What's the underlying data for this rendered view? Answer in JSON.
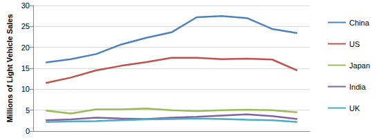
{
  "chart_data": {
    "type": "line",
    "y_label": "Millions of Light Vehicle Sales",
    "categories": [
      null,
      null,
      null,
      null,
      null,
      null,
      null,
      null,
      null,
      null,
      null
    ],
    "series": [
      {
        "name": "China",
        "color": "#4f81bd",
        "values": [
          16.4,
          17.2,
          18.4,
          20.7,
          22.3,
          23.6,
          27.2,
          27.5,
          27.0,
          24.4,
          23.4
        ]
      },
      {
        "name": "US",
        "color": "#c0504d",
        "values": [
          11.5,
          12.8,
          14.5,
          15.6,
          16.5,
          17.5,
          17.5,
          17.2,
          17.3,
          17.1,
          14.5
        ]
      },
      {
        "name": "Japan",
        "color": "#9bbb59",
        "values": [
          4.9,
          4.2,
          5.2,
          5.2,
          5.4,
          5.0,
          4.8,
          5.0,
          5.1,
          5.0,
          4.5
        ]
      },
      {
        "name": "India",
        "color": "#8064a2",
        "values": [
          2.6,
          2.8,
          3.2,
          3.0,
          2.9,
          3.2,
          3.4,
          3.7,
          4.0,
          3.6,
          2.9
        ]
      },
      {
        "name": "UK",
        "color": "#4bacc6",
        "values": [
          2.2,
          2.3,
          2.4,
          2.6,
          2.8,
          2.9,
          3.0,
          2.9,
          2.7,
          2.6,
          2.2
        ]
      }
    ],
    "ylim": [
      0,
      30
    ],
    "yticks": [
      0,
      5,
      10,
      15,
      20,
      25,
      30
    ],
    "grid": true,
    "legend": "right"
  }
}
